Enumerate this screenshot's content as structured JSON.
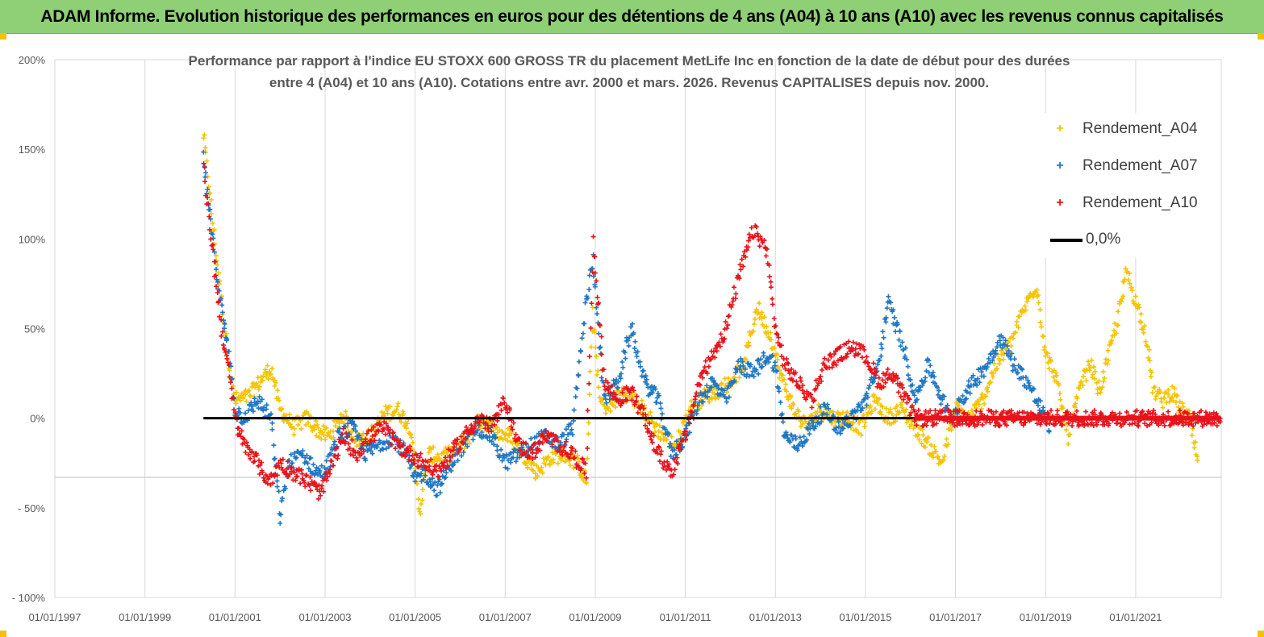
{
  "banner": {
    "title": "ADAM Informe. Evolution historique des performances en euros pour des détentions de 4 ans (A04) à 10 ans (A10) avec les revenus connus capitalisés"
  },
  "colors": {
    "banner_bg": "#8fd076",
    "A04": "#f5c400",
    "A07": "#1f77c4",
    "A10": "#e8131a",
    "zero_line": "#000000"
  },
  "chart_data": {
    "type": "scatter",
    "title_line1": "Performance par rapport à l'indice EU STOXX 600 GROSS TR  du placement MetLife Inc en fonction de la date de début pour des durées",
    "title_line2": "entre 4 (A04) et 10 ans (A10). Cotations entre avr. 2000 et mars. 2026. Revenus CAPITALISES depuis nov. 2000.",
    "x_tick_labels": [
      "01/01/1997",
      "01/01/1999",
      "01/01/2001",
      "01/01/2003",
      "01/01/2005",
      "01/01/2007",
      "01/01/2009",
      "01/01/2011",
      "01/01/2013",
      "01/01/2015",
      "01/01/2017",
      "01/01/2019",
      "01/01/2021"
    ],
    "y_tick_labels": [
      "200%",
      "150%",
      "100%",
      "50%",
      "0%",
      "- 50%",
      "- 100%"
    ],
    "y_ticks": [
      2.0,
      1.5,
      1.0,
      0.5,
      0.0,
      -0.5,
      -1.0
    ],
    "ylim": [
      -1.0,
      2.0
    ],
    "xlim": [
      1997.0,
      2022.9
    ],
    "grid": "vertical",
    "legend_position": "right",
    "legend": [
      "Rendement_A04",
      "Rendement_A07",
      "Rendement_A10",
      "0,0%"
    ],
    "zero_line": {
      "name": "0,0%",
      "x_start": 2000.3,
      "x_end": 2022.9,
      "y": 0.0
    },
    "series": [
      {
        "name": "Rendement_A04",
        "color": "#f5c400",
        "x": [
          2000.3,
          2000.5,
          2000.7,
          2000.9,
          2001.0,
          2001.3,
          2001.6,
          2001.8,
          2002.0,
          2002.3,
          2002.6,
          2002.9,
          2003.1,
          2003.4,
          2003.7,
          2004.0,
          2004.3,
          2004.6,
          2004.9,
          2005.1,
          2005.3,
          2005.6,
          2005.9,
          2006.2,
          2006.5,
          2006.8,
          2007.1,
          2007.4,
          2007.7,
          2008.0,
          2008.3,
          2008.6,
          2008.8,
          2008.95,
          2009.1,
          2009.3,
          2009.6,
          2009.9,
          2010.2,
          2010.5,
          2010.8,
          2011.1,
          2011.4,
          2011.7,
          2012.0,
          2012.3,
          2012.6,
          2012.9,
          2013.1,
          2013.4,
          2013.7,
          2014.0,
          2014.3,
          2014.6,
          2014.9,
          2015.2,
          2015.5,
          2015.8,
          2016.1,
          2016.4,
          2016.7,
          2017.0,
          2017.3,
          2017.6,
          2017.9,
          2018.2,
          2018.5,
          2018.8,
          2019.0,
          2019.2,
          2019.5,
          2019.8,
          2020.0,
          2020.2,
          2020.4,
          2020.6,
          2020.8,
          2021.0,
          2021.2,
          2021.4,
          2021.6,
          2021.8,
          2022.0,
          2022.2,
          2022.4
        ],
        "y": [
          1.58,
          1.1,
          0.65,
          0.25,
          0.1,
          0.12,
          0.22,
          0.28,
          0.05,
          -0.05,
          0.0,
          -0.08,
          -0.1,
          0.02,
          -0.12,
          -0.1,
          0.02,
          0.05,
          -0.05,
          -0.52,
          -0.2,
          -0.22,
          -0.18,
          -0.1,
          0.0,
          -0.08,
          -0.1,
          -0.2,
          -0.3,
          -0.22,
          -0.2,
          -0.25,
          -0.35,
          0.59,
          0.1,
          0.05,
          0.15,
          0.1,
          0.0,
          -0.1,
          -0.15,
          0.05,
          0.12,
          0.15,
          0.2,
          0.3,
          0.62,
          0.45,
          0.25,
          0.05,
          -0.05,
          0.05,
          0.0,
          0.0,
          -0.05,
          0.1,
          0.0,
          0.05,
          -0.05,
          -0.15,
          -0.25,
          0.05,
          0.0,
          0.1,
          0.3,
          0.4,
          0.6,
          0.75,
          0.35,
          0.25,
          -0.1,
          0.2,
          0.3,
          0.15,
          0.35,
          0.55,
          0.82,
          0.65,
          0.5,
          0.15,
          0.1,
          0.15,
          0.05,
          0.0,
          -0.28
        ]
      },
      {
        "name": "Rendement_A07",
        "color": "#1f77c4",
        "x": [
          2000.3,
          2000.5,
          2000.7,
          2000.9,
          2001.0,
          2001.2,
          2001.5,
          2001.8,
          2002.0,
          2002.2,
          2002.5,
          2002.8,
          2003.0,
          2003.3,
          2003.6,
          2003.9,
          2004.2,
          2004.5,
          2004.8,
          2005.0,
          2005.2,
          2005.5,
          2005.8,
          2006.1,
          2006.4,
          2006.7,
          2007.0,
          2007.3,
          2007.6,
          2007.9,
          2008.2,
          2008.5,
          2008.8,
          2008.95,
          2009.2,
          2009.5,
          2009.8,
          2010.1,
          2010.4,
          2010.7,
          2011.0,
          2011.3,
          2011.6,
          2011.9,
          2012.2,
          2012.5,
          2012.8,
          2013.0,
          2013.2,
          2013.5,
          2013.8,
          2014.1,
          2014.4,
          2014.7,
          2015.0,
          2015.3,
          2015.5,
          2015.7,
          2015.9,
          2016.1,
          2016.4,
          2016.7,
          2016.9,
          2017.1,
          2017.4,
          2017.7,
          2018.0,
          2018.3,
          2018.6,
          2018.9,
          2019.1
        ],
        "y": [
          1.45,
          1.0,
          0.6,
          0.3,
          0.05,
          0.0,
          0.1,
          0.0,
          -0.55,
          -0.25,
          -0.2,
          -0.3,
          -0.3,
          -0.1,
          -0.05,
          -0.2,
          -0.15,
          -0.1,
          -0.2,
          -0.35,
          -0.3,
          -0.4,
          -0.25,
          -0.15,
          -0.05,
          -0.1,
          -0.25,
          -0.2,
          -0.15,
          -0.1,
          -0.15,
          -0.05,
          0.65,
          0.88,
          0.1,
          0.2,
          0.5,
          0.2,
          0.1,
          -0.2,
          -0.1,
          0.1,
          0.2,
          0.1,
          0.3,
          0.25,
          0.35,
          0.3,
          -0.1,
          -0.15,
          -0.05,
          0.05,
          -0.05,
          0.0,
          0.1,
          0.3,
          0.65,
          0.5,
          0.35,
          0.1,
          0.3,
          0.1,
          0.0,
          0.1,
          0.2,
          0.3,
          0.45,
          0.3,
          0.2,
          0.05,
          -0.05
        ]
      },
      {
        "name": "Rendement_A10",
        "color": "#e8131a",
        "x": [
          2000.3,
          2000.5,
          2000.7,
          2000.9,
          2001.0,
          2001.2,
          2001.4,
          2001.6,
          2001.8,
          2002.0,
          2002.3,
          2002.6,
          2002.9,
          2003.1,
          2003.4,
          2003.7,
          2004.0,
          2004.3,
          2004.6,
          2004.9,
          2005.2,
          2005.5,
          2005.8,
          2006.1,
          2006.4,
          2006.7,
          2007.0,
          2007.3,
          2007.6,
          2007.9,
          2008.2,
          2008.5,
          2008.8,
          2008.95,
          2009.2,
          2009.5,
          2009.8,
          2010.1,
          2010.4,
          2010.7,
          2011.0,
          2011.3,
          2011.6,
          2011.9,
          2012.2,
          2012.5,
          2012.8,
          2013.0,
          2013.2,
          2013.5,
          2013.8,
          2014.1,
          2014.4,
          2014.7,
          2015.0,
          2015.3,
          2015.6,
          2015.9,
          2016.1,
          2016.5,
          2017.0,
          2017.5,
          2018.0,
          2018.5,
          2019.0,
          2019.5,
          2020.0,
          2020.5,
          2021.0,
          2021.5,
          2022.0,
          2022.5,
          2022.9
        ],
        "y": [
          1.4,
          0.95,
          0.5,
          0.2,
          0.0,
          -0.15,
          -0.2,
          -0.3,
          -0.35,
          -0.25,
          -0.3,
          -0.35,
          -0.42,
          -0.3,
          -0.1,
          -0.2,
          -0.1,
          -0.05,
          -0.15,
          -0.2,
          -0.25,
          -0.3,
          -0.2,
          -0.1,
          0.0,
          -0.05,
          0.1,
          -0.15,
          -0.2,
          -0.1,
          -0.15,
          -0.2,
          -0.3,
          1.0,
          0.2,
          0.1,
          0.15,
          0.0,
          -0.2,
          -0.3,
          -0.1,
          0.2,
          0.35,
          0.5,
          0.8,
          1.05,
          0.95,
          0.5,
          0.3,
          0.2,
          0.1,
          0.3,
          0.35,
          0.4,
          0.35,
          0.2,
          0.25,
          0.1,
          0.0,
          0.0,
          0.0,
          0.0,
          0.0,
          0.0,
          0.0,
          0.0,
          0.0,
          0.0,
          0.0,
          0.0,
          0.0,
          0.0,
          0.0
        ]
      }
    ]
  }
}
